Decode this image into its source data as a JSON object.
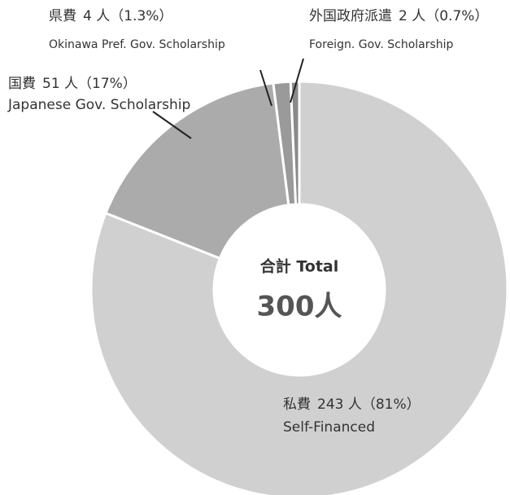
{
  "chart_data": {
    "type": "donut",
    "categories": [
      "私費",
      "国費",
      "県費",
      "外国政府派遣"
    ],
    "categories_en": [
      "Self-Financed",
      "Japanese Gov. Scholarship",
      "Okinawa Pref. Gov. Scholarship",
      "Foreign. Gov. Scholarship"
    ],
    "values": [
      243,
      51,
      4,
      2
    ],
    "value_labels": [
      "243 人（81%）",
      "51 人（17%）",
      "4 人（1.3%）",
      "2 人（0.7%）"
    ],
    "colors": [
      "#d0d0d0",
      "#ababab",
      "#9a9a9a",
      "#8a8a8a"
    ],
    "center_label": "合計 Total",
    "total": 300,
    "total_label": "300人"
  }
}
